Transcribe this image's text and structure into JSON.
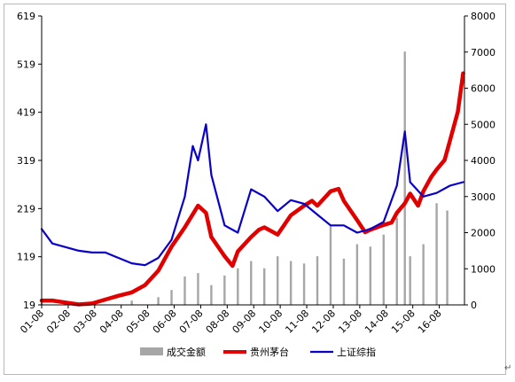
{
  "chart_data": {
    "type": "line",
    "title": "",
    "xlabel": "",
    "ylabel": "",
    "x_ticks": [
      "01-08",
      "02-08",
      "03-08",
      "04-08",
      "05-08",
      "06-08",
      "07-08",
      "08-08",
      "09-08",
      "10-08",
      "11-08",
      "12-08",
      "13-08",
      "14-08",
      "15-08",
      "16-08"
    ],
    "y_left": {
      "ticks": [
        "619",
        "519",
        "419",
        "319",
        "219",
        "119",
        "19"
      ],
      "range": [
        19,
        619
      ]
    },
    "y_right": {
      "ticks": [
        "8000",
        "7000",
        "6000",
        "5000",
        "4000",
        "3000",
        "2000",
        "1000",
        "0"
      ],
      "range": [
        0,
        8000
      ]
    },
    "grid": false,
    "legend_position": "bottom",
    "series": [
      {
        "name": "成交金额",
        "kind": "bar",
        "axis": "left",
        "color": "#a6a6a6",
        "x": [
          2001.6,
          2003.5,
          2005.0,
          2006.0,
          2006.5,
          2007.0,
          2007.5,
          2008.0,
          2008.5,
          2009.0,
          2009.5,
          2010.0,
          2010.5,
          2011.0,
          2011.5,
          2012.0,
          2012.5,
          2013.0,
          2013.5,
          2014.0,
          2014.5,
          2015.0,
          2015.3,
          2015.5,
          2016.0,
          2016.5,
          2016.9
        ],
        "values": [
          24,
          24,
          28,
          35,
          50,
          78,
          85,
          60,
          80,
          95,
          110,
          95,
          120,
          110,
          105,
          120,
          185,
          115,
          145,
          140,
          165,
          200,
          545,
          120,
          145,
          230,
          215
        ]
      },
      {
        "name": "贵州茅台",
        "kind": "line",
        "axis": "left",
        "color": "#e00000",
        "x": [
          2001.6,
          2002.0,
          2002.5,
          2003.0,
          2003.5,
          2004.0,
          2004.5,
          2005.0,
          2005.5,
          2006.0,
          2006.5,
          2007.0,
          2007.5,
          2007.8,
          2008.0,
          2008.5,
          2008.8,
          2009.0,
          2009.5,
          2009.8,
          2010.0,
          2010.5,
          2011.0,
          2011.5,
          2011.8,
          2012.0,
          2012.5,
          2012.8,
          2013.0,
          2013.5,
          2013.8,
          2014.0,
          2014.5,
          2014.8,
          2015.0,
          2015.3,
          2015.5,
          2015.8,
          2016.0,
          2016.3,
          2016.5,
          2016.8,
          2017.0,
          2017.3,
          2017.5
        ],
        "values": [
          28,
          28,
          24,
          20,
          22,
          30,
          38,
          45,
          60,
          90,
          140,
          180,
          225,
          210,
          160,
          120,
          100,
          130,
          160,
          175,
          180,
          165,
          205,
          225,
          235,
          225,
          255,
          260,
          235,
          195,
          170,
          175,
          185,
          190,
          210,
          230,
          250,
          225,
          255,
          285,
          300,
          320,
          360,
          420,
          500
        ]
      },
      {
        "name": "上证综指",
        "kind": "line",
        "axis": "right",
        "color": "#0a00c8",
        "x": [
          2001.6,
          2002.0,
          2002.5,
          2003.0,
          2003.5,
          2004.0,
          2004.5,
          2005.0,
          2005.5,
          2006.0,
          2006.5,
          2007.0,
          2007.3,
          2007.5,
          2007.8,
          2008.0,
          2008.5,
          2009.0,
          2009.5,
          2010.0,
          2010.5,
          2011.0,
          2011.5,
          2012.0,
          2012.5,
          2013.0,
          2013.5,
          2014.0,
          2014.5,
          2015.0,
          2015.3,
          2015.5,
          2016.0,
          2016.5,
          2017.0,
          2017.5
        ],
        "values": [
          2100,
          1700,
          1600,
          1500,
          1450,
          1450,
          1300,
          1150,
          1100,
          1300,
          1800,
          3000,
          4400,
          4000,
          5000,
          3600,
          2200,
          2000,
          3200,
          3000,
          2600,
          2900,
          2800,
          2500,
          2200,
          2200,
          2000,
          2100,
          2300,
          3300,
          4800,
          3400,
          3000,
          3100,
          3300,
          3400
        ]
      }
    ]
  }
}
